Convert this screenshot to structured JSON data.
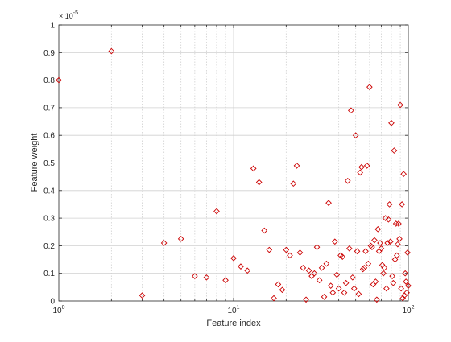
{
  "chart_data": {
    "type": "scatter",
    "xlabel": "Feature index",
    "ylabel": "Feature weight",
    "x_scale": "log",
    "xlim": [
      1,
      100
    ],
    "ylim": [
      0,
      1
    ],
    "y_multiplier_label": "× 10",
    "y_multiplier_exponent": "-5",
    "grid": true,
    "marker": "diamond",
    "colors": {
      "marker": "#cc0000",
      "grid": "#d0d0d0",
      "axis": "#262626"
    },
    "x_ticks": [
      {
        "value": 1,
        "base": "10",
        "exp": "0"
      },
      {
        "value": 10,
        "base": "10",
        "exp": "1"
      },
      {
        "value": 100,
        "base": "10",
        "exp": "2"
      }
    ],
    "y_ticks": [
      {
        "value": 0,
        "label": "0"
      },
      {
        "value": 0.1,
        "label": "0.1"
      },
      {
        "value": 0.2,
        "label": "0.2"
      },
      {
        "value": 0.3,
        "label": "0.3"
      },
      {
        "value": 0.4,
        "label": "0.4"
      },
      {
        "value": 0.5,
        "label": "0.5"
      },
      {
        "value": 0.6,
        "label": "0.6"
      },
      {
        "value": 0.7,
        "label": "0.7"
      },
      {
        "value": 0.8,
        "label": "0.8"
      },
      {
        "value": 0.9,
        "label": "0.9"
      },
      {
        "value": 1,
        "label": "1"
      }
    ],
    "points": [
      [
        1,
        0.8
      ],
      [
        2,
        0.905
      ],
      [
        3,
        0.02
      ],
      [
        4,
        0.21
      ],
      [
        5,
        0.225
      ],
      [
        6,
        0.09
      ],
      [
        7,
        0.085
      ],
      [
        8,
        0.325
      ],
      [
        9,
        0.075
      ],
      [
        10,
        0.155
      ],
      [
        11,
        0.125
      ],
      [
        12,
        0.11
      ],
      [
        13,
        0.48
      ],
      [
        14,
        0.43
      ],
      [
        15,
        0.255
      ],
      [
        16,
        0.185
      ],
      [
        17,
        0.01
      ],
      [
        18,
        0.06
      ],
      [
        19,
        0.04
      ],
      [
        20,
        0.185
      ],
      [
        21,
        0.165
      ],
      [
        22,
        0.425
      ],
      [
        23,
        0.49
      ],
      [
        24,
        0.175
      ],
      [
        25,
        0.12
      ],
      [
        26,
        0.005
      ],
      [
        27,
        0.11
      ],
      [
        28,
        0.09
      ],
      [
        29,
        0.1
      ],
      [
        30,
        0.195
      ],
      [
        31,
        0.075
      ],
      [
        32,
        0.12
      ],
      [
        33,
        0.015
      ],
      [
        34,
        0.135
      ],
      [
        35,
        0.355
      ],
      [
        36,
        0.055
      ],
      [
        37,
        0.03
      ],
      [
        38,
        0.215
      ],
      [
        39,
        0.095
      ],
      [
        40,
        0.045
      ],
      [
        41,
        0.165
      ],
      [
        42,
        0.16
      ],
      [
        43,
        0.03
      ],
      [
        44,
        0.065
      ],
      [
        45,
        0.435
      ],
      [
        46,
        0.19
      ],
      [
        47,
        0.69
      ],
      [
        48,
        0.085
      ],
      [
        49,
        0.045
      ],
      [
        50,
        0.6
      ],
      [
        51,
        0.18
      ],
      [
        52,
        0.025
      ],
      [
        53,
        0.465
      ],
      [
        54,
        0.485
      ],
      [
        55,
        0.115
      ],
      [
        56,
        0.12
      ],
      [
        57,
        0.18
      ],
      [
        58,
        0.49
      ],
      [
        59,
        0.135
      ],
      [
        60,
        0.775
      ],
      [
        61,
        0.2
      ],
      [
        62,
        0.195
      ],
      [
        63,
        0.06
      ],
      [
        64,
        0.22
      ],
      [
        65,
        0.07
      ],
      [
        66,
        0.005
      ],
      [
        67,
        0.26
      ],
      [
        68,
        0.18
      ],
      [
        69,
        0.21
      ],
      [
        70,
        0.19
      ],
      [
        71,
        0.13
      ],
      [
        72,
        0.1
      ],
      [
        73,
        0.12
      ],
      [
        74,
        0.3
      ],
      [
        75,
        0.045
      ],
      [
        76,
        0.21
      ],
      [
        77,
        0.295
      ],
      [
        78,
        0.35
      ],
      [
        79,
        0.215
      ],
      [
        80,
        0.645
      ],
      [
        81,
        0.09
      ],
      [
        82,
        0.065
      ],
      [
        83,
        0.545
      ],
      [
        84,
        0.15
      ],
      [
        85,
        0.28
      ],
      [
        86,
        0.165
      ],
      [
        87,
        0.205
      ],
      [
        88,
        0.28
      ],
      [
        89,
        0.225
      ],
      [
        90,
        0.71
      ],
      [
        91,
        0.045
      ],
      [
        92,
        0.35
      ],
      [
        93,
        0.01
      ],
      [
        94,
        0.46
      ],
      [
        95,
        0.02
      ],
      [
        96,
        0.1
      ],
      [
        97,
        0.07
      ],
      [
        98,
        0.03
      ],
      [
        99,
        0.175
      ],
      [
        100,
        0.055
      ]
    ]
  }
}
